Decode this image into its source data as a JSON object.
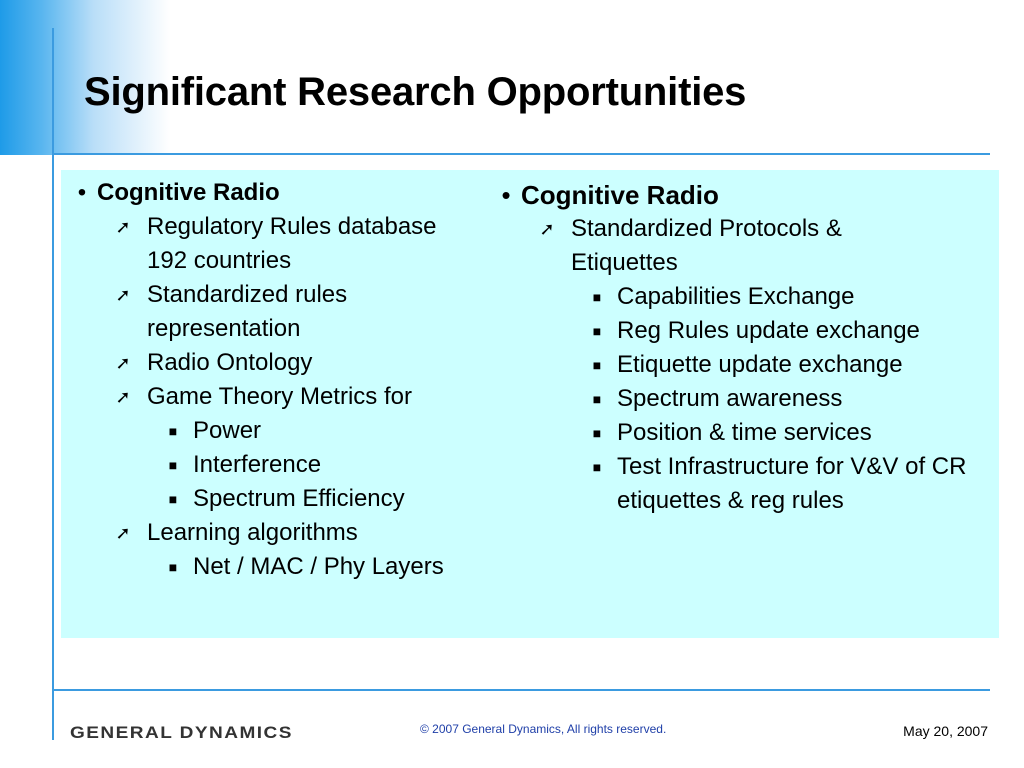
{
  "slide": {
    "title": "Significant Research Opportunities"
  },
  "left_column": {
    "heading": "Cognitive Radio",
    "items": [
      "Regulatory Rules database 192 countries",
      "Standardized rules representation",
      "Radio Ontology",
      "Game Theory Metrics for",
      "Power",
      "Interference",
      "Spectrum Efficiency",
      "Learning algorithms",
      "Net / MAC / Phy Layers"
    ]
  },
  "right_column": {
    "heading": "Cognitive Radio",
    "items": [
      "Standardized Protocols & Etiquettes",
      "Capabilities Exchange",
      "Reg Rules update exchange",
      "Etiquette update exchange",
      "Spectrum awareness",
      "Position & time services",
      "Test Infrastructure for V&V of CR etiquettes & reg rules"
    ]
  },
  "markers": {
    "level1": "•",
    "level2": "➚",
    "level3": "■"
  },
  "footer": {
    "logo_text": "GENERAL DYNAMICS",
    "copyright": "© 2007 General Dynamics, All rights reserved.",
    "date": "May 20, 2007"
  },
  "colors": {
    "accent_blue": "#3b9be0",
    "content_background": "#ccffff",
    "copyright_text": "#1f3fa8"
  }
}
